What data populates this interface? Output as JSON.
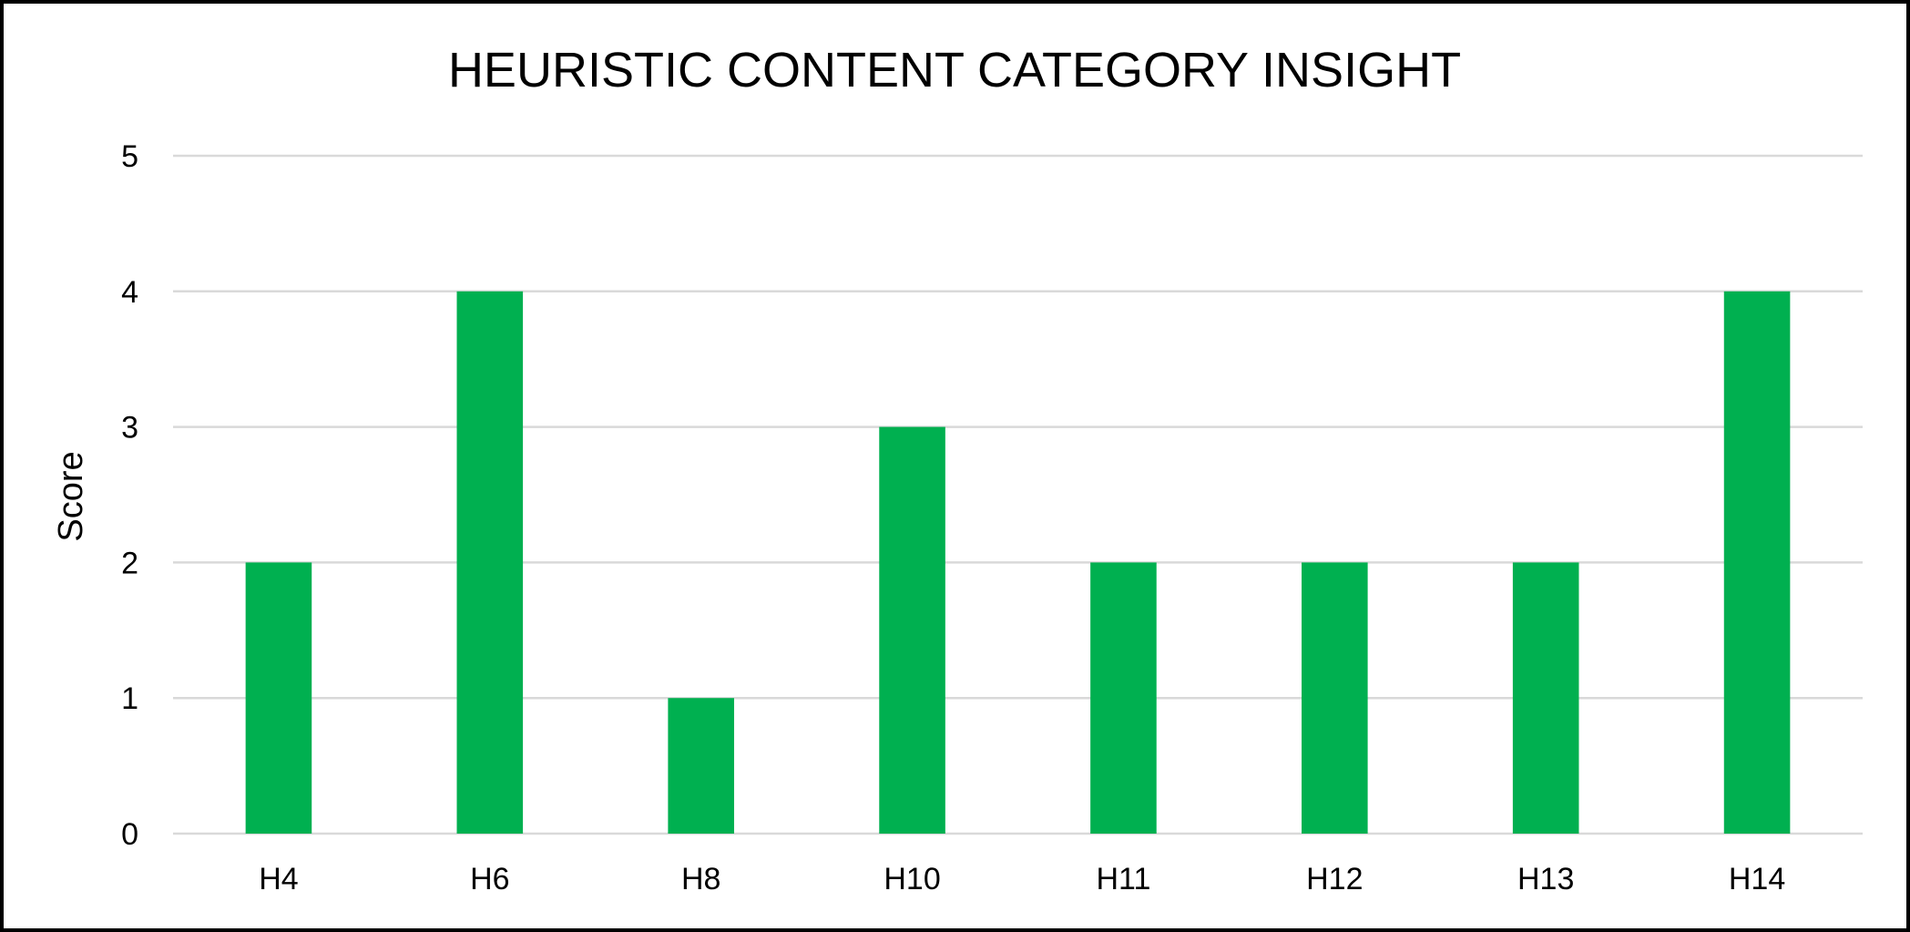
{
  "chart_data": {
    "type": "bar",
    "title": "HEURISTIC CONTENT CATEGORY INSIGHT",
    "xlabel": "",
    "ylabel": "Score",
    "categories": [
      "H4",
      "H6",
      "H8",
      "H10",
      "H11",
      "H12",
      "H13",
      "H14"
    ],
    "values": [
      2,
      4,
      1,
      3,
      2,
      2,
      2,
      4
    ],
    "ylim": [
      0,
      5
    ],
    "yticks": [
      "0",
      "1",
      "2",
      "3",
      "4",
      "5"
    ],
    "grid": true,
    "legend": "none",
    "bar_color": "#00b050"
  }
}
